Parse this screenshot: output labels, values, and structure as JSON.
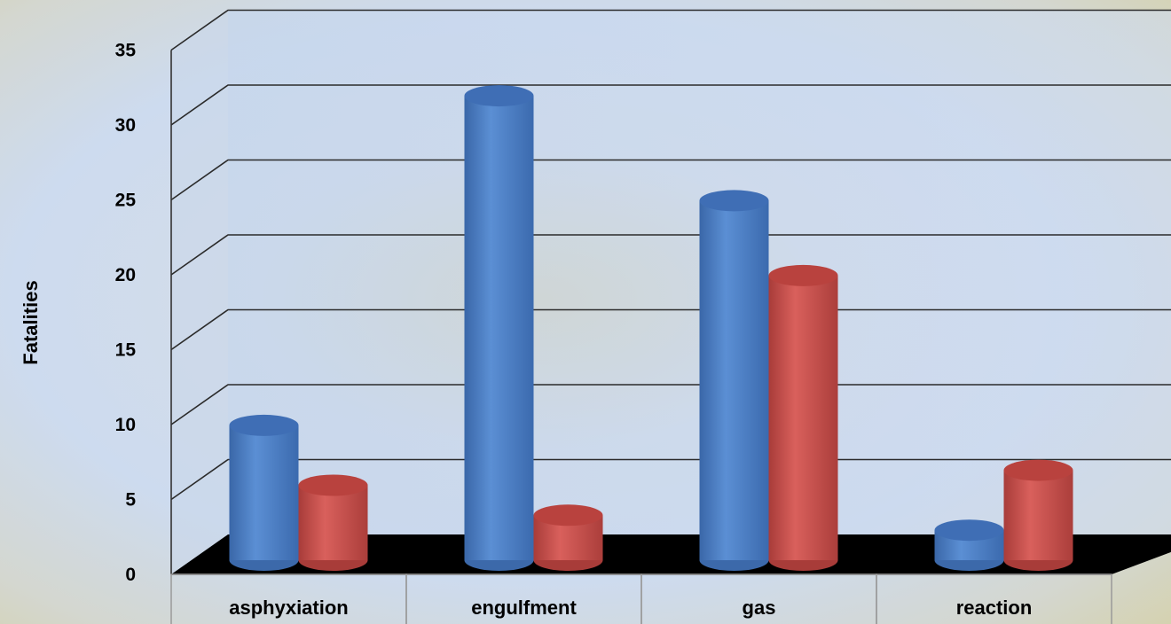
{
  "chart_data": {
    "type": "bar",
    "title": "",
    "xlabel": "",
    "ylabel": "Fatalities",
    "ylim": [
      0,
      35
    ],
    "yticks": [
      0,
      5,
      10,
      15,
      20,
      25,
      30,
      35
    ],
    "grid": true,
    "legend": "none",
    "categories": [
      "asphyxiation",
      "engulfment",
      "gas",
      "reaction"
    ],
    "series": [
      {
        "color": "#4f81bd",
        "values": [
          9,
          31,
          24,
          2
        ]
      },
      {
        "color": "#c0504d",
        "values": [
          5,
          3,
          19,
          6
        ]
      }
    ]
  }
}
